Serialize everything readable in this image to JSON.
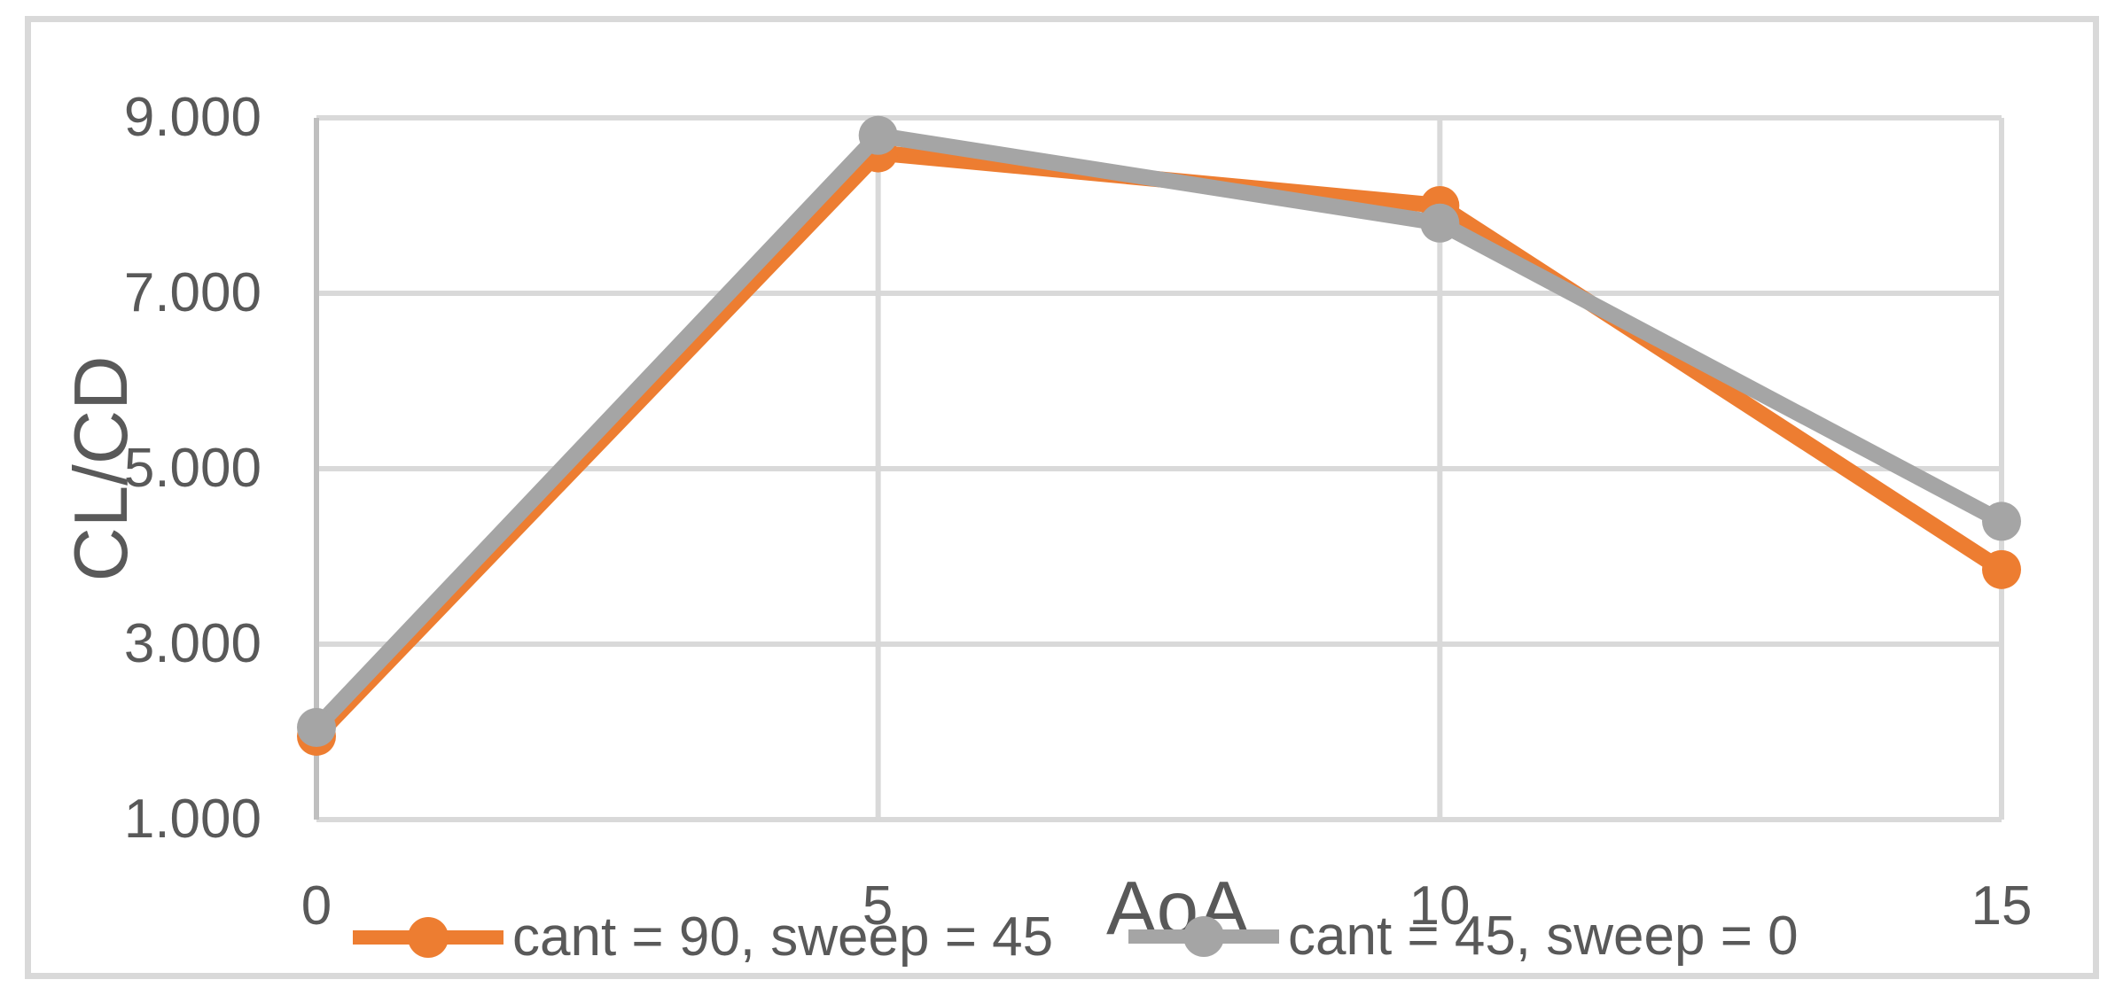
{
  "chart_data": {
    "type": "line",
    "x": [
      0,
      5,
      10,
      15
    ],
    "series": [
      {
        "name": "cant = 90, sweep = 45",
        "color": "#ED7D31",
        "values": [
          1.95,
          8.6,
          8.0,
          3.85
        ]
      },
      {
        "name": "cant = 45, sweep = 0",
        "color": "#A5A5A5",
        "values": [
          2.05,
          8.8,
          7.8,
          4.4
        ]
      }
    ],
    "title": "",
    "xlabel": "AoA",
    "ylabel": "CL/CD",
    "xlim": [
      0,
      15
    ],
    "ylim": [
      1.0,
      9.0
    ],
    "xtick_values": [
      0,
      5,
      10,
      15
    ],
    "xtick_labels": [
      "0",
      "5",
      "10",
      "15"
    ],
    "ytick_values": [
      9,
      7,
      5,
      3,
      1
    ],
    "ytick_labels": [
      "9.000",
      "7.000",
      "5.000",
      "3.000",
      "1.000"
    ],
    "grid": true,
    "legend_position": "bottom",
    "marker_style": "circle",
    "gridline_color": "#D9D9D9",
    "axis_line_color": "#BFBFBF",
    "text_color": "#595959",
    "border_color": "#D9D9D9",
    "background_color": "#FFFFFF"
  }
}
